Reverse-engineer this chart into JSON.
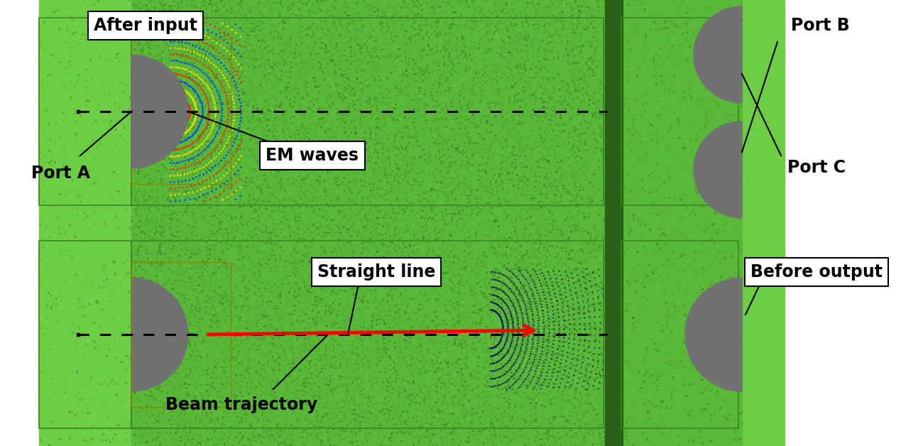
{
  "labels": {
    "after_input": "After input",
    "port_b": "Port B",
    "port_a": "Port A",
    "em_waves": "EM waves",
    "port_c": "Port C",
    "straight_line": "Straight line",
    "before_output": "Before output",
    "beam_trajectory": "Beam trajectory"
  },
  "green_main": "#5aba3a",
  "green_light": "#6dcc44",
  "green_inner": "#55b535",
  "gray_port": "#717171",
  "white": "#ffffff",
  "font_size": 17,
  "font_family": "DejaVu Sans"
}
